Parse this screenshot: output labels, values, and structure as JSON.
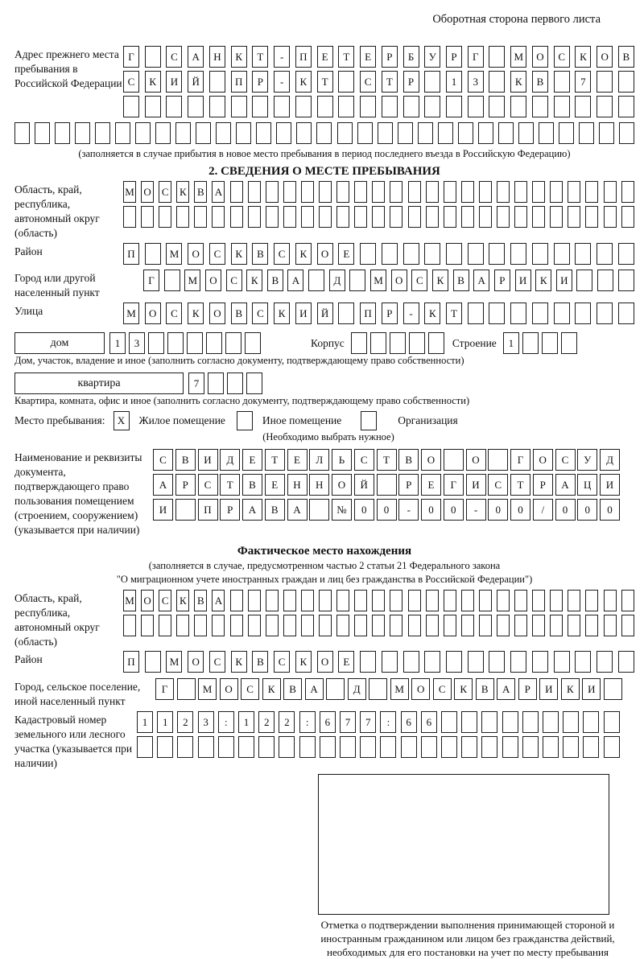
{
  "page": {
    "top_note": "Оборотная сторона первого листа"
  },
  "prev_address": {
    "label": "Адрес прежнего места пребывания в Российской Федерации",
    "rows": [
      [
        "Г",
        "",
        "С",
        "А",
        "Н",
        "К",
        "Т",
        "-",
        "П",
        "Е",
        "Т",
        "Е",
        "Р",
        "Б",
        "У",
        "Р",
        "Г",
        "",
        "М",
        "О",
        "С",
        "К",
        "О",
        "В"
      ],
      [
        "С",
        "К",
        "И",
        "Й",
        "",
        "П",
        "Р",
        "-",
        "К",
        "Т",
        "",
        "С",
        "Т",
        "Р",
        "",
        "1",
        "3",
        "",
        "К",
        "В",
        "",
        "7",
        "",
        ""
      ],
      [
        "",
        "",
        "",
        "",
        "",
        "",
        "",
        "",
        "",
        "",
        "",
        "",
        "",
        "",
        "",
        "",
        "",
        "",
        "",
        "",
        "",
        "",
        "",
        ""
      ]
    ],
    "row_full": [
      "",
      "",
      "",
      "",
      "",
      "",
      "",
      "",
      "",
      "",
      "",
      "",
      "",
      "",
      "",
      "",
      "",
      "",
      "",
      "",
      "",
      "",
      "",
      "",
      "",
      "",
      "",
      "",
      "",
      "",
      ""
    ],
    "caption": "(заполняется в случае прибытия в новое место пребывания в период последнего въезда в Российскую Федерацию)"
  },
  "section2": {
    "title": "2. СВЕДЕНИЯ О МЕСТЕ ПРЕБЫВАНИЯ",
    "region": {
      "label": "Область, край, республика, автономный округ (область)",
      "rows": [
        [
          "М",
          "О",
          "С",
          "К",
          "В",
          "А",
          "",
          "",
          "",
          "",
          "",
          "",
          "",
          "",
          "",
          "",
          "",
          "",
          "",
          "",
          "",
          "",
          "",
          "",
          "",
          "",
          "",
          "",
          ""
        ],
        [
          "",
          "",
          "",
          "",
          "",
          "",
          "",
          "",
          "",
          "",
          "",
          "",
          "",
          "",
          "",
          "",
          "",
          "",
          "",
          "",
          "",
          "",
          "",
          "",
          "",
          "",
          "",
          "",
          ""
        ]
      ]
    },
    "district": {
      "label": "Район",
      "cells": [
        "П",
        "",
        "М",
        "О",
        "С",
        "К",
        "В",
        "С",
        "К",
        "О",
        "Е",
        "",
        "",
        "",
        "",
        "",
        "",
        "",
        "",
        "",
        "",
        "",
        "",
        ""
      ]
    },
    "city": {
      "label": "Город или другой населенный пункт",
      "cells": [
        "Г",
        "",
        "М",
        "О",
        "С",
        "К",
        "В",
        "А",
        "",
        "Д",
        "",
        "М",
        "О",
        "С",
        "К",
        "В",
        "А",
        "Р",
        "И",
        "К",
        "И",
        "",
        "",
        ""
      ]
    },
    "street": {
      "label": "Улица",
      "cells": [
        "М",
        "О",
        "С",
        "К",
        "О",
        "В",
        "С",
        "К",
        "И",
        "Й",
        "",
        "П",
        "Р",
        "-",
        "К",
        "Т",
        "",
        "",
        "",
        "",
        "",
        "",
        "",
        ""
      ]
    },
    "house": {
      "name_label": "дом",
      "cells": [
        "1",
        "3",
        "",
        "",
        "",
        "",
        "",
        ""
      ],
      "korpus_label": "Корпус",
      "korpus_cells": [
        "",
        "",
        "",
        "",
        ""
      ],
      "stroenie_label": "Строение",
      "stroenie_cells": [
        "1",
        "",
        "",
        ""
      ],
      "caption": "Дом, участок, владение и иное (заполнить согласно документу, подтверждающему право собственности)"
    },
    "apartment": {
      "name_label": "квартира",
      "cells": [
        "7",
        "",
        "",
        ""
      ],
      "caption": "Квартира, комната, офис и иное (заполнить согласно документу, подтверждающему право собственности)"
    },
    "stay_type": {
      "label": "Место пребывания:",
      "checks": [
        "X",
        "",
        ""
      ],
      "options": [
        "Жилое помещение",
        "Иное помещение",
        "Организация"
      ],
      "note": "(Необходимо выбрать нужное)"
    },
    "document": {
      "label": "Наименование и реквизиты документа, подтверждающего право пользования помещением (строением, сооружением) (указывается при наличии)",
      "rows": [
        [
          "С",
          "В",
          "И",
          "Д",
          "Е",
          "Т",
          "Е",
          "Л",
          "Ь",
          "С",
          "Т",
          "В",
          "О",
          "",
          "О",
          "",
          "Г",
          "О",
          "С",
          "У",
          "Д"
        ],
        [
          "А",
          "Р",
          "С",
          "Т",
          "В",
          "Е",
          "Н",
          "Н",
          "О",
          "Й",
          "",
          "Р",
          "Е",
          "Г",
          "И",
          "С",
          "Т",
          "Р",
          "А",
          "Ц",
          "И"
        ],
        [
          "И",
          "",
          "П",
          "Р",
          "А",
          "В",
          "А",
          "",
          "№",
          "0",
          "0",
          "-",
          "0",
          "0",
          "-",
          "0",
          "0",
          "/",
          "0",
          "0",
          "0"
        ]
      ]
    }
  },
  "actual_location": {
    "title": "Фактическое место нахождения",
    "caption_line1": "(заполняется в случае, предусмотренном частью 2 статьи 21 Федерального закона",
    "caption_line2": "\"О миграционном учете иностранных граждан и лиц без гражданства в Российской Федерации\")",
    "region": {
      "label": "Область, край, республика, автономный округ (область)",
      "rows": [
        [
          "М",
          "О",
          "С",
          "К",
          "В",
          "А",
          "",
          "",
          "",
          "",
          "",
          "",
          "",
          "",
          "",
          "",
          "",
          "",
          "",
          "",
          "",
          "",
          "",
          "",
          "",
          "",
          "",
          "",
          ""
        ],
        [
          "",
          "",
          "",
          "",
          "",
          "",
          "",
          "",
          "",
          "",
          "",
          "",
          "",
          "",
          "",
          "",
          "",
          "",
          "",
          "",
          "",
          "",
          "",
          "",
          "",
          "",
          "",
          "",
          ""
        ]
      ]
    },
    "district": {
      "label": "Район",
      "cells": [
        "П",
        "",
        "М",
        "О",
        "С",
        "К",
        "В",
        "С",
        "К",
        "О",
        "Е",
        "",
        "",
        "",
        "",
        "",
        "",
        "",
        "",
        "",
        "",
        "",
        "",
        ""
      ]
    },
    "city": {
      "label": "Город, сельское поселение, иной населенный пункт",
      "cells": [
        "Г",
        "",
        "М",
        "О",
        "С",
        "К",
        "В",
        "А",
        "",
        "Д",
        "",
        "М",
        "О",
        "С",
        "К",
        "В",
        "А",
        "Р",
        "И",
        "К",
        "И",
        ""
      ]
    },
    "cadastral": {
      "label": "Кадастровый номер земельного или лесного участка (указывается при наличии)",
      "rows": [
        [
          "1",
          "1",
          "2",
          "3",
          ":",
          "1",
          "2",
          "2",
          ":",
          "6",
          "7",
          "7",
          ":",
          "6",
          "6",
          "",
          "",
          "",
          "",
          "",
          "",
          "",
          "",
          ""
        ],
        [
          "",
          "",
          "",
          "",
          "",
          "",
          "",
          "",
          "",
          "",
          "",
          "",
          "",
          "",
          "",
          "",
          "",
          "",
          "",
          "",
          "",
          "",
          "",
          ""
        ]
      ]
    },
    "stamp_caption": "Отметка о подтверждении выполнения принимающей стороной и иностранным гражданином или лицом без гражданства действий, необходимых для его постановки на учет по месту пребывания"
  }
}
